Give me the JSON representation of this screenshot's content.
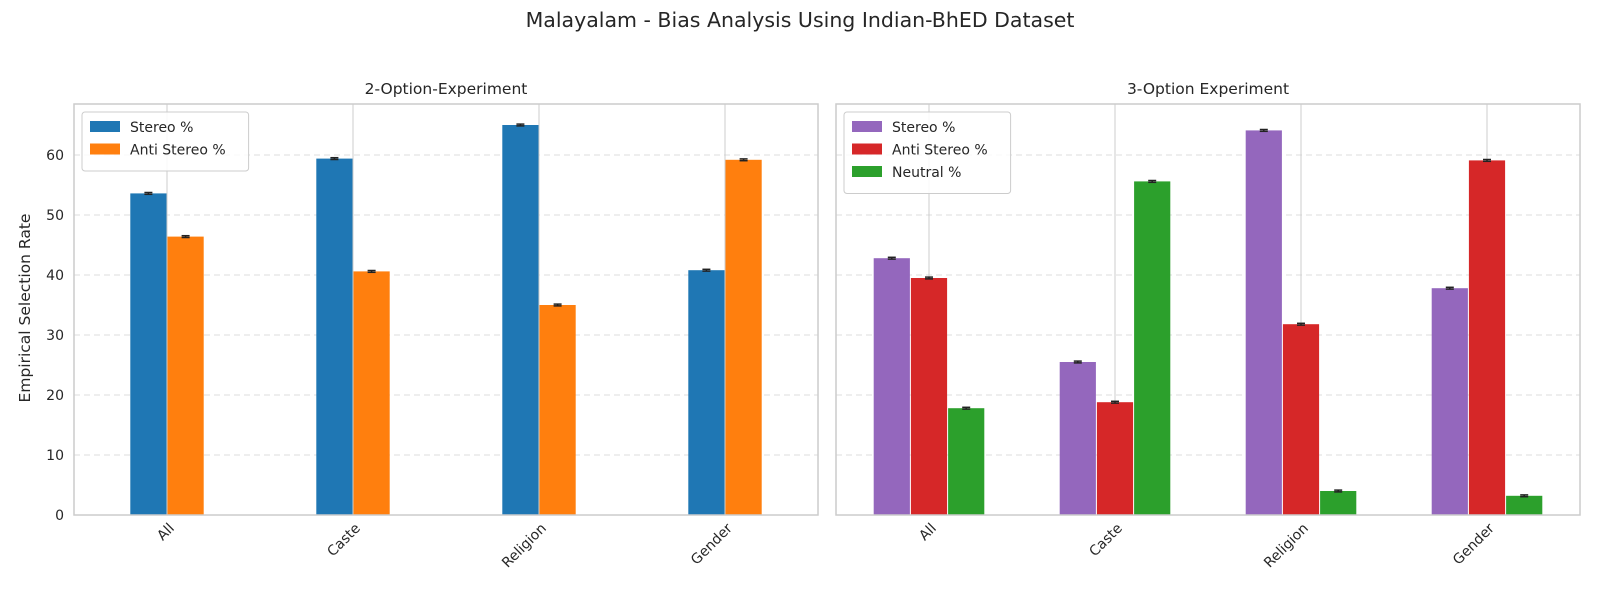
{
  "figure": {
    "suptitle": "Malayalam - Bias Analysis Using Indian-BhED Dataset",
    "ylabel": "Empirical Selection Rate"
  },
  "chart_data": [
    {
      "type": "bar",
      "title": "2-Option-Experiment",
      "xlabel": "",
      "ylabel": "Empirical Selection Rate",
      "categories": [
        "All",
        "Caste",
        "Religion",
        "Gender"
      ],
      "ylim": [
        0,
        68.5
      ],
      "yticks": [
        0,
        10,
        20,
        30,
        40,
        50,
        60
      ],
      "grid": "horizontal-dashed",
      "legend_position": "top-left",
      "error_bar": 0.15,
      "series": [
        {
          "name": "Stereo %",
          "color": "#1f77b4",
          "values": [
            53.6,
            59.4,
            65.0,
            40.8
          ]
        },
        {
          "name": "Anti Stereo %",
          "color": "#ff7f0e",
          "values": [
            46.4,
            40.6,
            35.0,
            59.2
          ]
        }
      ]
    },
    {
      "type": "bar",
      "title": "3-Option Experiment",
      "xlabel": "",
      "ylabel": "",
      "categories": [
        "All",
        "Caste",
        "Religion",
        "Gender"
      ],
      "ylim": [
        0,
        68.5
      ],
      "yticks": [
        0,
        10,
        20,
        30,
        40,
        50,
        60
      ],
      "grid": "horizontal-dashed",
      "legend_position": "top-left",
      "error_bar": 0.15,
      "series": [
        {
          "name": "Stereo %",
          "color": "#9467bd",
          "values": [
            42.8,
            25.5,
            64.1,
            37.8
          ]
        },
        {
          "name": "Anti Stereo %",
          "color": "#d62728",
          "values": [
            39.5,
            18.8,
            31.8,
            59.1
          ]
        },
        {
          "name": "Neutral %",
          "color": "#2ca02c",
          "values": [
            17.8,
            55.6,
            4.0,
            3.2
          ]
        }
      ]
    }
  ]
}
